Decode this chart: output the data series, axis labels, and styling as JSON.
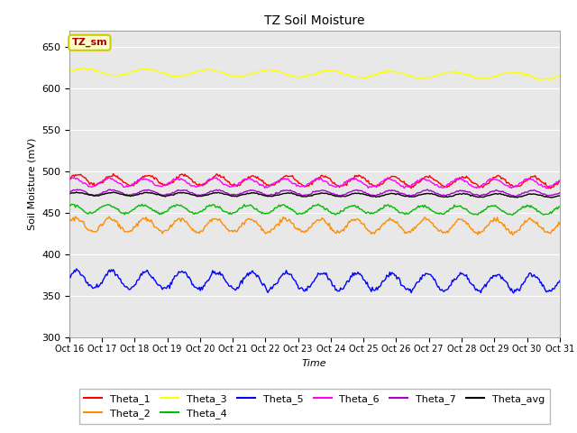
{
  "title": "TZ Soil Moisture",
  "xlabel": "Time",
  "ylabel": "Soil Moisture (mV)",
  "ylim": [
    300,
    670
  ],
  "yticks": [
    300,
    350,
    400,
    450,
    500,
    550,
    600,
    650
  ],
  "xtick_labels": [
    "Oct 16",
    "Oct 17",
    "Oct 18",
    "Oct 19",
    "Oct 20",
    "Oct 21",
    "Oct 22",
    "Oct 23",
    "Oct 24",
    "Oct 25",
    "Oct 26",
    "Oct 27",
    "Oct 28",
    "Oct 29",
    "Oct 30",
    "Oct 31"
  ],
  "n_points": 480,
  "series": {
    "Theta_1": {
      "color": "#ff0000",
      "base": 490,
      "trend": -2.5,
      "amp": 6,
      "freq": 14,
      "phase": 0.0
    },
    "Theta_2": {
      "color": "#ff8c00",
      "base": 436,
      "trend": -2.0,
      "amp": 8,
      "freq": 14,
      "phase": 0.5
    },
    "Theta_3": {
      "color": "#ffff00",
      "base": 620,
      "trend": -5.0,
      "amp": 4,
      "freq": 8,
      "phase": 0.0
    },
    "Theta_4": {
      "color": "#00bb00",
      "base": 455,
      "trend": -1.5,
      "amp": 5,
      "freq": 14,
      "phase": 1.0
    },
    "Theta_5": {
      "color": "#0000ff",
      "base": 370,
      "trend": -4.0,
      "amp": 10,
      "freq": 14,
      "phase": 0.3
    },
    "Theta_6": {
      "color": "#ff00ff",
      "base": 487,
      "trend": -1.0,
      "amp": 5,
      "freq": 14,
      "phase": 0.8
    },
    "Theta_7": {
      "color": "#aa00cc",
      "base": 475,
      "trend": -1.0,
      "amp": 3,
      "freq": 14,
      "phase": 0.2
    },
    "Theta_avg": {
      "color": "#000000",
      "base": 473,
      "trend": -2.0,
      "amp": 2,
      "freq": 14,
      "phase": 0.1
    }
  },
  "plot_bg_color": "#e8e8e8",
  "title_tag": "TZ_sm",
  "title_tag_color": "#aa0000",
  "title_tag_bg": "#ffffcc",
  "title_tag_edge": "#cccc00"
}
